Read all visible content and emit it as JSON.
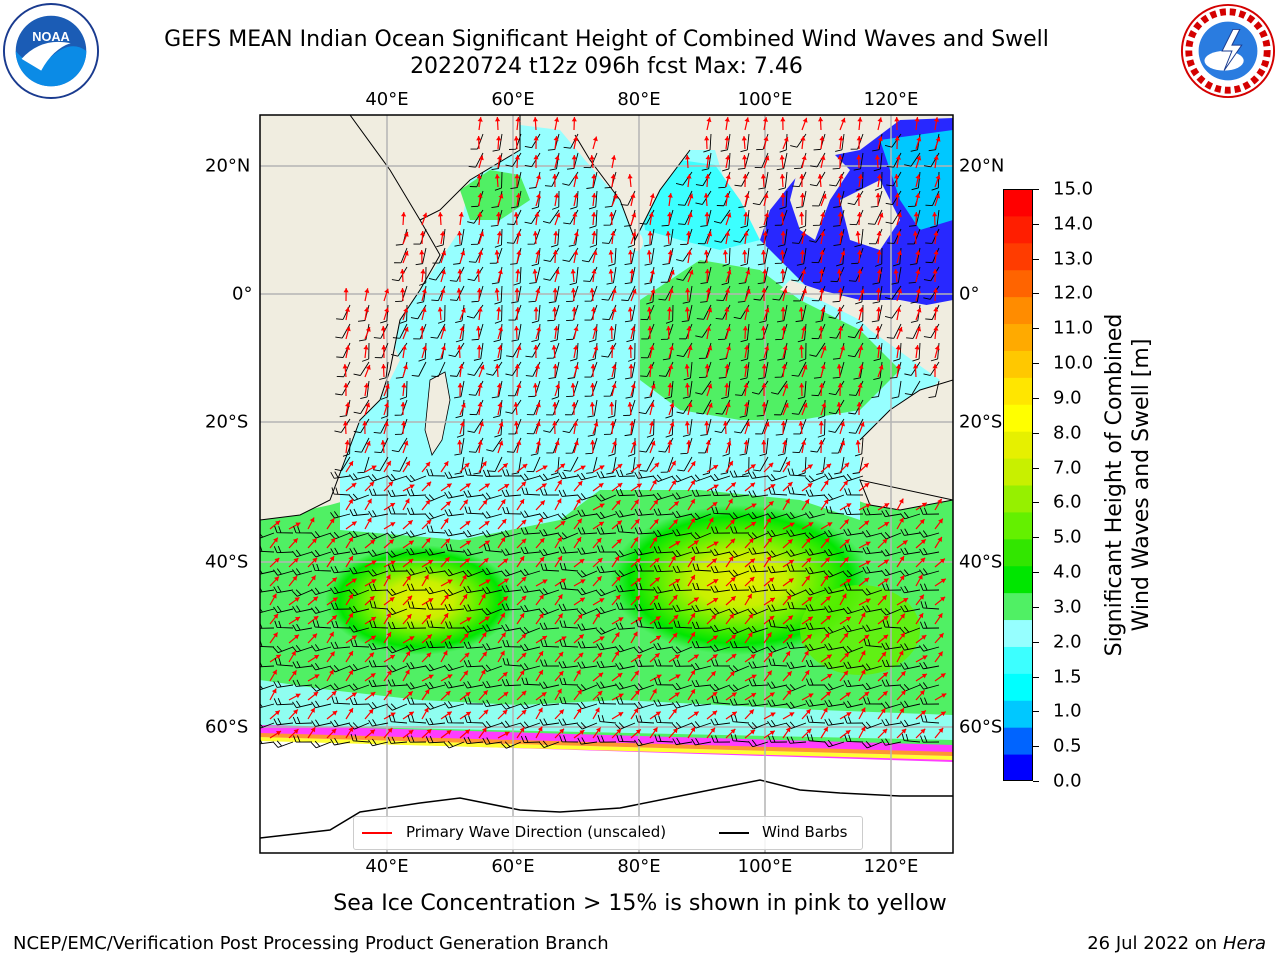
{
  "header": {
    "title_line1": "GEFS MEAN Indian Ocean Significant Height of Combined Wind Waves and Swell",
    "title_line2": "20220724 t12z 096h fcst   Max: 7.46"
  },
  "logos": {
    "left": {
      "name": "noaa-logo",
      "text": "NOAA"
    },
    "right": {
      "name": "nws-logo",
      "text": "NATIONAL WEATHER SERVICE"
    }
  },
  "map": {
    "lon_ticks": [
      "40°E",
      "60°E",
      "80°E",
      "100°E",
      "120°E"
    ],
    "lat_ticks": [
      "20°N",
      "0°",
      "20°S",
      "40°S",
      "60°S"
    ],
    "extent": {
      "lon": [
        20,
        130
      ],
      "lat": [
        -76,
        28
      ]
    },
    "ocean_colors": [
      "#2828ff",
      "#00c8ff",
      "#3cffff",
      "#96ffff",
      "#50f064",
      "#00e600",
      "#64f000",
      "#c8f000",
      "#e6f000"
    ],
    "land_color": "#f0ede0",
    "ice_colors": [
      "#ff3cff",
      "#ff9632",
      "#ffff32"
    ],
    "wave_arrow_color": "#ff0000",
    "barb_color": "#000000"
  },
  "legend": {
    "wave_label": "Primary Wave Direction (unscaled)",
    "barb_label": "Wind Barbs"
  },
  "colorbar": {
    "ticks": [
      "15.0",
      "14.0",
      "13.0",
      "12.0",
      "11.0",
      "10.0",
      "9.0",
      "8.0",
      "7.0",
      "6.0",
      "5.0",
      "4.0",
      "3.0",
      "2.0",
      "1.5",
      "1.0",
      "0.5",
      "0.0"
    ],
    "colors": [
      "#0000ff",
      "#0064ff",
      "#00c8ff",
      "#00ffff",
      "#3cffff",
      "#96ffff",
      "#50f064",
      "#00e600",
      "#32e600",
      "#64f000",
      "#96f000",
      "#c8f000",
      "#e6f000",
      "#ffff00",
      "#ffe600",
      "#ffc800",
      "#ffaa00",
      "#ff8c00",
      "#ff6400",
      "#ff3c00",
      "#ff1e00",
      "#ff0000"
    ],
    "label_line1": "Significant Height of Combined",
    "label_line2": "Wind Waves and Swell [m]"
  },
  "notes": {
    "subtitle": "Sea Ice Concentration > 15% is shown in pink to yellow"
  },
  "footer": {
    "left": "NCEP/EMC/Verification Post Processing Product Generation Branch",
    "right_date": "26 Jul 2022 on ",
    "right_host": "Hera"
  }
}
